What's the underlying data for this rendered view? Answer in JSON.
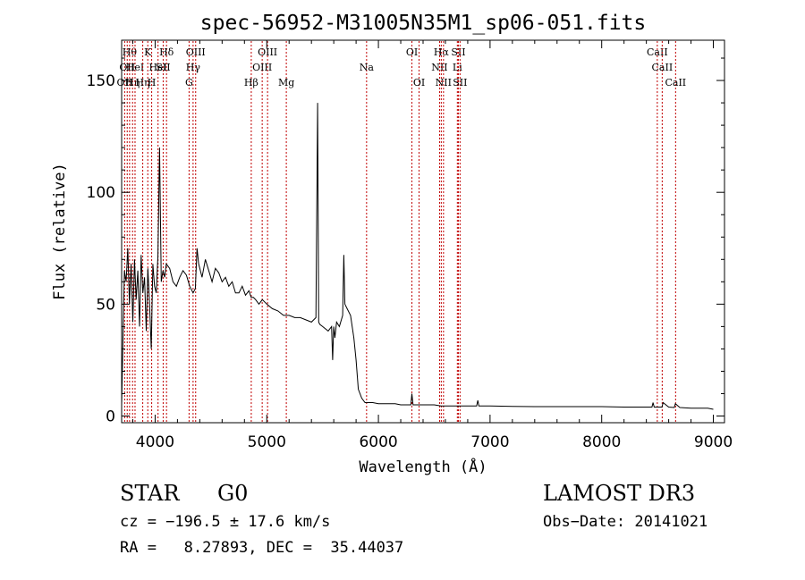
{
  "chart_data": {
    "type": "line",
    "title": "spec-56952-M31005N35M1_sp06-051.fits",
    "xlabel": "Wavelength (Å)",
    "ylabel": "Flux (relative)",
    "xlim": [
      3700,
      9100
    ],
    "ylim": [
      -3,
      168
    ],
    "xticks": [
      4000,
      5000,
      6000,
      7000,
      8000,
      9000
    ],
    "yticks": [
      0,
      50,
      100,
      150
    ],
    "grid": false,
    "series": [
      {
        "color": "#000000",
        "x": [
          3700,
          3712,
          3725,
          3740,
          3755,
          3770,
          3785,
          3800,
          3815,
          3830,
          3845,
          3860,
          3875,
          3890,
          3905,
          3920,
          3935,
          3950,
          3965,
          3980,
          3995,
          4010,
          4025,
          4040,
          4055,
          4070,
          4085,
          4100,
          4130,
          4160,
          4190,
          4220,
          4250,
          4280,
          4310,
          4340,
          4360,
          4375,
          4390,
          4420,
          4450,
          4480,
          4510,
          4540,
          4570,
          4600,
          4630,
          4660,
          4690,
          4720,
          4750,
          4780,
          4810,
          4840,
          4860,
          4880,
          4900,
          4930,
          4960,
          5000,
          5050,
          5100,
          5150,
          5200,
          5250,
          5300,
          5350,
          5400,
          5440,
          5455,
          5465,
          5475,
          5500,
          5550,
          5580,
          5590,
          5600,
          5610,
          5625,
          5650,
          5680,
          5690,
          5700,
          5720,
          5750,
          5780,
          5800,
          5820,
          5850,
          5880,
          5900,
          5950,
          6000,
          6050,
          6100,
          6150,
          6200,
          6250,
          6290,
          6300,
          6310,
          6350,
          6400,
          6500,
          6560,
          6600,
          6700,
          6800,
          6880,
          6890,
          6900,
          7000,
          7200,
          7400,
          7600,
          7800,
          8000,
          8200,
          8400,
          8450,
          8460,
          8470,
          8500,
          8540,
          8550,
          8600,
          8650,
          8660,
          8700,
          8800,
          8900,
          8950,
          9000
        ],
        "y": [
          5,
          35,
          65,
          60,
          75,
          50,
          68,
          42,
          70,
          52,
          65,
          40,
          72,
          55,
          62,
          38,
          66,
          50,
          30,
          68,
          58,
          55,
          72,
          120,
          60,
          65,
          62,
          68,
          66,
          60,
          58,
          62,
          65,
          63,
          58,
          55,
          57,
          75,
          68,
          62,
          70,
          65,
          60,
          66,
          64,
          60,
          62,
          58,
          60,
          55,
          55,
          58,
          54,
          56,
          53,
          53,
          52,
          50,
          52,
          50,
          48,
          47,
          45,
          45,
          44,
          44,
          43,
          42,
          44,
          140,
          42,
          41,
          40,
          38,
          40,
          25,
          40,
          35,
          42,
          40,
          45,
          72,
          50,
          48,
          45,
          35,
          25,
          12,
          8,
          6,
          6,
          6,
          5.5,
          5.5,
          5.5,
          5.5,
          5,
          5,
          5,
          10,
          5,
          5,
          5,
          5,
          4.5,
          4.5,
          4.5,
          4.5,
          4.5,
          7,
          4.5,
          4.5,
          4.3,
          4.2,
          4.2,
          4.2,
          4.2,
          4,
          4,
          4,
          6,
          4,
          4,
          4,
          6,
          4,
          3.8,
          5.5,
          3.8,
          3.5,
          3.5,
          3.5,
          3
        ]
      }
    ],
    "lines": [
      {
        "wave": 3727,
        "label": "OII",
        "row": 2
      },
      {
        "wave": 3750,
        "label": "OII",
        "row": 1
      },
      {
        "wave": 3771,
        "label": "Hθ",
        "row": 0
      },
      {
        "wave": 3798,
        "label": "Hη",
        "row": 2
      },
      {
        "wave": 3820,
        "label": "HeI",
        "row": 1
      },
      {
        "wave": 3889,
        "label": "Hη",
        "row": 2
      },
      {
        "wave": 3934,
        "label": "K",
        "row": 0
      },
      {
        "wave": 3969,
        "label": "H",
        "row": 2
      },
      {
        "wave": 4026,
        "label": "HeI",
        "row": 1
      },
      {
        "wave": 4072,
        "label": "SII",
        "row": 1
      },
      {
        "wave": 4102,
        "label": "Hδ",
        "row": 0
      },
      {
        "wave": 4304,
        "label": "G",
        "row": 2
      },
      {
        "wave": 4340,
        "label": "Hγ",
        "row": 1
      },
      {
        "wave": 4363,
        "label": "OIII",
        "row": 0
      },
      {
        "wave": 4861,
        "label": "Hβ",
        "row": 2
      },
      {
        "wave": 4959,
        "label": "OIII",
        "row": 1
      },
      {
        "wave": 5007,
        "label": "OIII",
        "row": 0
      },
      {
        "wave": 5175,
        "label": "Mg",
        "row": 2
      },
      {
        "wave": 5894,
        "label": "Na",
        "row": 1
      },
      {
        "wave": 6300,
        "label": "OI",
        "row": 0
      },
      {
        "wave": 6364,
        "label": "OI",
        "row": 2
      },
      {
        "wave": 6548,
        "label": "NII",
        "row": 1
      },
      {
        "wave": 6563,
        "label": "Hα",
        "row": 0
      },
      {
        "wave": 6583,
        "label": "NII",
        "row": 2
      },
      {
        "wave": 6707,
        "label": "Li",
        "row": 1
      },
      {
        "wave": 6716,
        "label": "SII",
        "row": 0
      },
      {
        "wave": 6731,
        "label": "SII",
        "row": 2
      },
      {
        "wave": 8498,
        "label": "CaII",
        "row": 0
      },
      {
        "wave": 8542,
        "label": "CaII",
        "row": 1
      },
      {
        "wave": 8662,
        "label": "CaII",
        "row": 2
      }
    ]
  },
  "info": {
    "class": "STAR",
    "subclass": "G0",
    "survey": "LAMOST DR3",
    "cz": "cz = −196.5 ± 17.6 km/s",
    "obs_date": "Obs−Date: 20141021",
    "coords": "RA =   8.27893, DEC =  35.44037"
  }
}
